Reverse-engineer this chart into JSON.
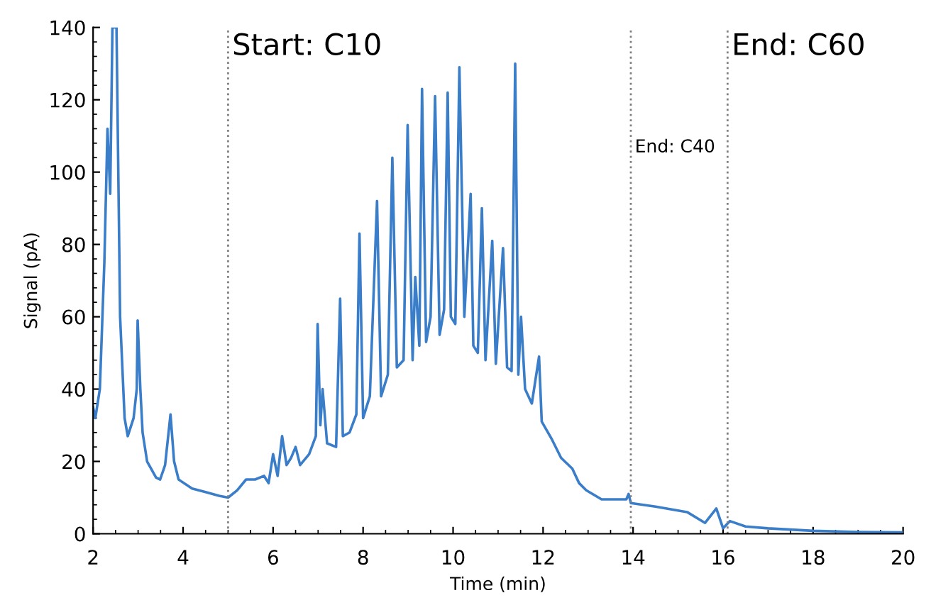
{
  "chart_data": {
    "type": "line",
    "xlabel": "Time (min)",
    "ylabel": "Signal (pA)",
    "xlim": [
      2,
      20
    ],
    "ylim": [
      0,
      140
    ],
    "xticks": [
      2,
      4,
      6,
      8,
      10,
      12,
      14,
      16,
      18,
      20
    ],
    "yticks": [
      0,
      20,
      40,
      60,
      80,
      100,
      120,
      140
    ],
    "grid": false,
    "legend": false,
    "marker": "none",
    "line_style": "solid",
    "ref_lines": [
      {
        "axis": "x",
        "value": 5.0,
        "label": "Start: C10",
        "color": "#808080",
        "line_style": "dotted"
      },
      {
        "axis": "x",
        "value": 13.95,
        "label": "End: C40",
        "color": "#808080",
        "line_style": "dotted"
      },
      {
        "axis": "x",
        "value": 16.1,
        "label": "End: C60",
        "color": "#808080",
        "line_style": "dotted"
      }
    ],
    "series": [
      {
        "color": "#3a7dc9",
        "x": [
          2.0,
          2.05,
          2.15,
          2.25,
          2.32,
          2.38,
          2.43,
          2.52,
          2.6,
          2.7,
          2.77,
          2.9,
          2.97,
          2.99,
          3.05,
          3.1,
          3.2,
          3.4,
          3.49,
          3.6,
          3.72,
          3.8,
          3.9,
          4.2,
          4.5,
          4.8,
          5.0,
          5.2,
          5.4,
          5.6,
          5.8,
          5.9,
          6.0,
          6.1,
          6.2,
          6.3,
          6.4,
          6.5,
          6.6,
          6.8,
          6.95,
          6.99,
          7.05,
          7.1,
          7.2,
          7.4,
          7.49,
          7.55,
          7.7,
          7.85,
          7.92,
          8.0,
          8.15,
          8.31,
          8.4,
          8.55,
          8.65,
          8.75,
          8.9,
          8.99,
          9.1,
          9.16,
          9.25,
          9.31,
          9.4,
          9.5,
          9.6,
          9.7,
          9.8,
          9.88,
          9.95,
          10.05,
          10.14,
          10.25,
          10.39,
          10.45,
          10.55,
          10.64,
          10.72,
          10.87,
          10.95,
          11.11,
          11.2,
          11.3,
          11.38,
          11.45,
          11.51,
          11.6,
          11.75,
          11.91,
          11.97,
          12.2,
          12.4,
          12.65,
          12.8,
          12.96,
          13.3,
          13.85,
          13.9,
          13.95,
          14.5,
          15.2,
          15.6,
          15.85,
          16.0,
          16.15,
          16.5,
          17,
          18,
          19,
          20
        ],
        "values": [
          35,
          32,
          40,
          75,
          112,
          94,
          140,
          140,
          60,
          32,
          27,
          32,
          40,
          59,
          40,
          28,
          20,
          15.5,
          15,
          19,
          33,
          20,
          15,
          12.5,
          11.5,
          10.5,
          10,
          12,
          15,
          15,
          16,
          14,
          22,
          16,
          27,
          19,
          21,
          24,
          19,
          22,
          27,
          58,
          30,
          40,
          25,
          24,
          65,
          27,
          28,
          33,
          83,
          32,
          38,
          92,
          38,
          44,
          104,
          46,
          48,
          113,
          48,
          71,
          52,
          123,
          53,
          60,
          121,
          55,
          62,
          122,
          60,
          58,
          129,
          60,
          94,
          52,
          50,
          90,
          48,
          81,
          47,
          79,
          46,
          45,
          130,
          44,
          60,
          40,
          36,
          49,
          31,
          26,
          21,
          18,
          14,
          12,
          9.5,
          9.5,
          11,
          8.5,
          7.5,
          6,
          3,
          7,
          1.5,
          3.5,
          2,
          1.5,
          0.8,
          0.5,
          0.4
        ]
      }
    ]
  }
}
